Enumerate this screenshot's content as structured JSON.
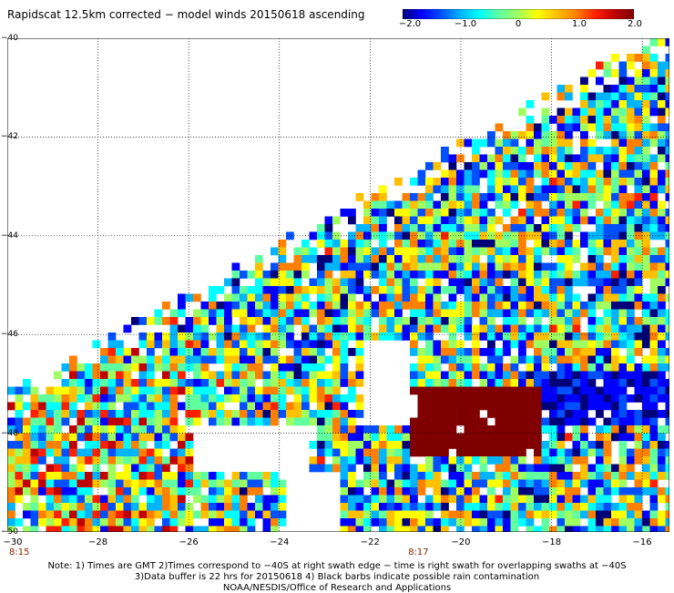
{
  "title": "Rapidscat 12.5km corrected − model winds 20150618 ascending",
  "colorbar": {
    "ticks": [
      "−2.0",
      "−1.0",
      "0",
      "1.0",
      "2.0"
    ],
    "colors": [
      "#00007a",
      "#0000ff",
      "#0050ff",
      "#00b4ff",
      "#00ffff",
      "#60ff9f",
      "#a0ff60",
      "#ffff00",
      "#ffc000",
      "#ff8000",
      "#ff2000",
      "#c00000",
      "#800000"
    ]
  },
  "axes": {
    "x_ticks": [
      "−30",
      "−28",
      "−26",
      "−24",
      "−22",
      "−20",
      "−18",
      "−16"
    ],
    "y_ticks": [
      "−40",
      "−42",
      "−44",
      "−46",
      "−48",
      "−50"
    ],
    "x_range": [
      -30,
      -15.4
    ],
    "y_range": [
      -50,
      -40
    ],
    "grid": "dotted"
  },
  "time_labels": [
    {
      "text": "8:15",
      "lon": -30
    },
    {
      "text": "8:17",
      "lon": -21.2
    }
  ],
  "notes": {
    "line1": "Note: 1) Times are GMT 2)Times correspond to −40S at right swath edge − time is right swath for overlapping swaths at −40S",
    "line2": "3)Data buffer is 22 hrs for 20150618 4) Black barbs indicate possible rain contamination",
    "line3": "NOAA/NESDIS/Office of Research and Applications"
  }
}
